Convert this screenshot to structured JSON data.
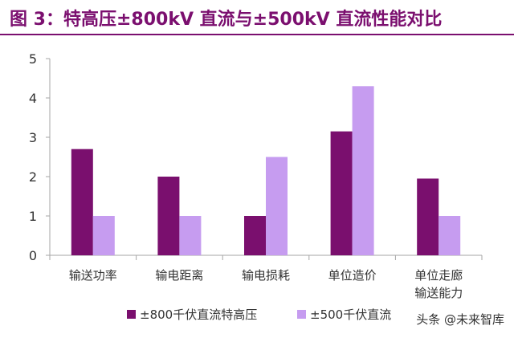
{
  "title": "图 3：特高压±800kV 直流与±500kV 直流性能对比",
  "watermark": "头条 @未来智库",
  "chart_data": {
    "type": "bar",
    "categories": [
      "输送功率",
      "输电距离",
      "输电损耗",
      "单位造价",
      "单位走廊\n输送能力"
    ],
    "series": [
      {
        "name": "±800千伏直流特高压",
        "values": [
          2.7,
          2.0,
          1.0,
          3.15,
          1.95
        ],
        "color": "#7a0f6e"
      },
      {
        "name": "±500千伏直流",
        "values": [
          1.0,
          1.0,
          2.5,
          4.3,
          1.0
        ],
        "color": "#c69cf0"
      }
    ],
    "ylim": [
      0,
      5
    ],
    "yticks": [
      0,
      1,
      2,
      3,
      4,
      5
    ],
    "grid": false,
    "legend": "bottom"
  }
}
